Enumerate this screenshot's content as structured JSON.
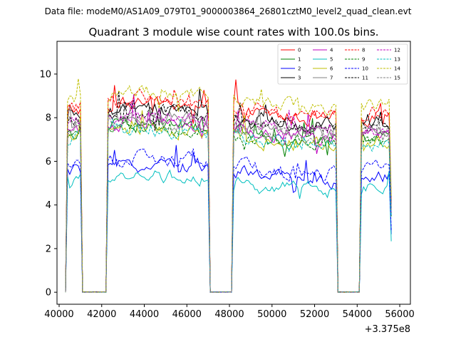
{
  "chart_data": {
    "type": "line",
    "suptitle": "Data file: modeM0/AS1A09_079T01_9000003864_26801cztM0_level2_quad_clean.evt",
    "title": "Quadrant 3 module wise count rates with 100.0s bins.",
    "xlabel": "",
    "ylabel": "",
    "x_offset_label": "+3.375e8",
    "xlim": [
      39900,
      56500
    ],
    "ylim": [
      -0.55,
      11.5
    ],
    "x_ticks": [
      40000,
      42000,
      44000,
      46000,
      48000,
      50000,
      52000,
      54000,
      56000
    ],
    "x_tick_labels": [
      "40000",
      "42000",
      "44000",
      "46000",
      "48000",
      "50000",
      "52000",
      "54000",
      "56000"
    ],
    "y_ticks": [
      0,
      2,
      4,
      6,
      8,
      10
    ],
    "y_tick_labels": [
      "0",
      "2",
      "4",
      "6",
      "8",
      "10"
    ],
    "legend_position": "top-right",
    "on_segments": [
      [
        40300,
        41100
      ],
      [
        42200,
        47100
      ],
      [
        48100,
        53100
      ],
      [
        54100,
        55650
      ]
    ],
    "transition_width": 100,
    "series": [
      {
        "name": "0",
        "color": "#ff0000",
        "dash": "solid",
        "base": 8.3
      },
      {
        "name": "1",
        "color": "#008000",
        "dash": "solid",
        "base": 7.3
      },
      {
        "name": "2",
        "color": "#0000ff",
        "dash": "solid",
        "base": 5.5
      },
      {
        "name": "3",
        "color": "#000000",
        "dash": "solid",
        "base": 8.0
      },
      {
        "name": "4",
        "color": "#bf00bf",
        "dash": "solid",
        "base": 7.4
      },
      {
        "name": "5",
        "color": "#00bfbf",
        "dash": "solid",
        "base": 5.0
      },
      {
        "name": "6",
        "color": "#bfbf00",
        "dash": "solid",
        "base": 7.1
      },
      {
        "name": "7",
        "color": "#808080",
        "dash": "solid",
        "base": 7.6
      },
      {
        "name": "8",
        "color": "#ff0000",
        "dash": "dashed",
        "base": 8.5
      },
      {
        "name": "9",
        "color": "#008000",
        "dash": "dashed",
        "base": 7.2
      },
      {
        "name": "10",
        "color": "#0000ff",
        "dash": "dashed",
        "base": 5.8
      },
      {
        "name": "11",
        "color": "#000000",
        "dash": "dashed",
        "base": 7.9
      },
      {
        "name": "12",
        "color": "#bf00bf",
        "dash": "dashed",
        "base": 7.7
      },
      {
        "name": "13",
        "color": "#00bfbf",
        "dash": "dashed",
        "base": 7.0
      },
      {
        "name": "14",
        "color": "#bfbf00",
        "dash": "dashed",
        "base": 8.8
      },
      {
        "name": "15",
        "color": "#808080",
        "dash": "dashed",
        "base": 7.5
      }
    ]
  }
}
